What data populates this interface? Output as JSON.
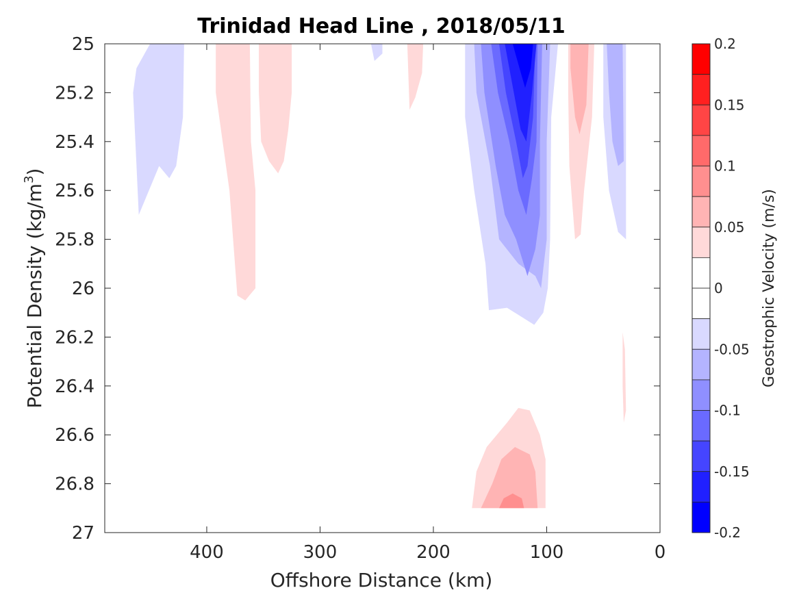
{
  "chart_data": {
    "type": "heatmap",
    "subtype": "filled-contour",
    "title": "Trinidad Head Line , 2018/05/11",
    "xlabel": "Offshore Distance (km)",
    "ylabel": "Potential Density (kg/m",
    "ylabel_sup": "3",
    "ylabel_close": ")",
    "xlim": [
      490,
      0
    ],
    "x_reversed": true,
    "ylim": [
      25,
      27
    ],
    "y_reversed": true,
    "xticks": [
      400,
      300,
      200,
      100,
      0
    ],
    "xtick_labels": [
      "400",
      "300",
      "200",
      "100",
      "0"
    ],
    "yticks": [
      25,
      25.2,
      25.4,
      25.6,
      25.8,
      26,
      26.2,
      26.4,
      26.6,
      26.8,
      27
    ],
    "ytick_labels": [
      "25",
      "25.2",
      "25.4",
      "25.6",
      "25.8",
      "26",
      "26.2",
      "26.4",
      "26.6",
      "26.8",
      "27"
    ],
    "colorbar": {
      "label": "Geostrophic Velocity (m/s)",
      "range": [
        -0.2,
        0.2
      ],
      "ticks": [
        0.2,
        0.15,
        0.1,
        0.05,
        0,
        -0.05,
        -0.1,
        -0.15,
        -0.2
      ],
      "tick_labels": [
        "0.2",
        "0.15",
        "0.1",
        "0.05",
        "0",
        "-0.05",
        "-0.1",
        "-0.15",
        "-0.2"
      ],
      "levels": [
        {
          "from": 0.175,
          "to": 0.2,
          "color": "#ff0000"
        },
        {
          "from": 0.15,
          "to": 0.175,
          "color": "#ff2020"
        },
        {
          "from": 0.125,
          "to": 0.15,
          "color": "#ff4545"
        },
        {
          "from": 0.1,
          "to": 0.125,
          "color": "#ff6a6a"
        },
        {
          "from": 0.075,
          "to": 0.1,
          "color": "#ff8f8f"
        },
        {
          "from": 0.05,
          "to": 0.075,
          "color": "#ffb4b4"
        },
        {
          "from": 0.025,
          "to": 0.05,
          "color": "#ffd9d9"
        },
        {
          "from": 0,
          "to": 0.025,
          "color": "#ffffff"
        },
        {
          "from": -0.025,
          "to": 0,
          "color": "#ffffff"
        },
        {
          "from": -0.05,
          "to": -0.025,
          "color": "#d9d9ff"
        },
        {
          "from": -0.075,
          "to": -0.05,
          "color": "#b4b4ff"
        },
        {
          "from": -0.1,
          "to": -0.075,
          "color": "#8f8fff"
        },
        {
          "from": -0.125,
          "to": -0.1,
          "color": "#6a6aff"
        },
        {
          "from": -0.15,
          "to": -0.125,
          "color": "#4545ff"
        },
        {
          "from": -0.175,
          "to": -0.15,
          "color": "#2020ff"
        },
        {
          "from": -0.2,
          "to": -0.175,
          "color": "#0000ff"
        }
      ]
    },
    "regions": [
      {
        "level": -0.05,
        "color": "#d9d9ff",
        "points": [
          [
            450,
            25
          ],
          [
            420,
            25
          ],
          [
            421,
            25.3
          ],
          [
            427,
            25.5
          ],
          [
            433,
            25.55
          ],
          [
            442,
            25.5
          ],
          [
            460,
            25.7
          ],
          [
            465,
            25.2
          ],
          [
            462,
            25.1
          ]
        ]
      },
      {
        "level": -0.05,
        "color": "#d9d9ff",
        "points": [
          [
            255,
            25
          ],
          [
            245,
            25
          ],
          [
            245,
            25.04
          ],
          [
            252,
            25.07
          ]
        ]
      },
      {
        "level": -0.05,
        "color": "#d9d9ff",
        "points": [
          [
            172,
            25
          ],
          [
            90,
            25
          ],
          [
            96,
            25.3
          ],
          [
            97,
            25.8
          ],
          [
            99,
            26.0
          ],
          [
            103,
            26.1
          ],
          [
            111,
            26.15
          ],
          [
            135,
            26.08
          ],
          [
            151,
            26.09
          ],
          [
            154,
            25.9
          ],
          [
            164,
            25.6
          ],
          [
            172,
            25.3
          ]
        ]
      },
      {
        "level": -0.05,
        "color": "#d9d9ff",
        "points": [
          [
            50,
            25
          ],
          [
            30,
            25
          ],
          [
            30,
            25.5
          ],
          [
            30,
            25.8
          ],
          [
            37,
            25.77
          ],
          [
            45,
            25.6
          ],
          [
            50,
            25.3
          ]
        ]
      },
      {
        "level": -0.075,
        "color": "#b4b4ff",
        "points": [
          [
            164,
            25
          ],
          [
            97,
            25
          ],
          [
            100,
            25.4
          ],
          [
            100,
            25.8
          ],
          [
            105,
            26.0
          ],
          [
            110,
            25.95
          ],
          [
            125,
            25.9
          ],
          [
            142,
            25.8
          ],
          [
            150,
            25.5
          ],
          [
            162,
            25.2
          ]
        ]
      },
      {
        "level": -0.075,
        "color": "#b4b4ff",
        "points": [
          [
            47,
            25
          ],
          [
            33,
            25
          ],
          [
            32,
            25.48
          ],
          [
            37,
            25.5
          ],
          [
            42,
            25.4
          ],
          [
            45,
            25.2
          ]
        ]
      },
      {
        "level": -0.1,
        "color": "#8f8fff",
        "points": [
          [
            158,
            25
          ],
          [
            104,
            25
          ],
          [
            106,
            25.4
          ],
          [
            106,
            25.7
          ],
          [
            110,
            25.84
          ],
          [
            117,
            25.95
          ],
          [
            127,
            25.8
          ],
          [
            137,
            25.7
          ],
          [
            145,
            25.5
          ],
          [
            155,
            25.2
          ]
        ]
      },
      {
        "level": -0.125,
        "color": "#6a6aff",
        "points": [
          [
            149,
            25
          ],
          [
            108,
            25
          ],
          [
            109,
            25.4
          ],
          [
            113,
            25.55
          ],
          [
            118,
            25.7
          ],
          [
            125,
            25.6
          ],
          [
            133,
            25.4
          ],
          [
            143,
            25.2
          ]
        ]
      },
      {
        "level": -0.15,
        "color": "#4545ff",
        "points": [
          [
            142,
            25
          ],
          [
            110,
            25
          ],
          [
            112,
            25.3
          ],
          [
            117,
            25.5
          ],
          [
            121,
            25.55
          ],
          [
            127,
            25.4
          ],
          [
            136,
            25.2
          ]
        ]
      },
      {
        "level": -0.175,
        "color": "#2020ff",
        "points": [
          [
            137,
            25
          ],
          [
            109,
            25
          ],
          [
            113,
            25.2
          ],
          [
            118,
            25.4
          ],
          [
            123,
            25.35
          ],
          [
            131,
            25.15
          ]
        ]
      },
      {
        "level": -0.2,
        "color": "#0000ff",
        "points": [
          [
            130,
            25
          ],
          [
            112,
            25
          ],
          [
            114,
            25.1
          ],
          [
            119,
            25.18
          ],
          [
            124,
            25.1
          ]
        ]
      },
      {
        "level": 0.05,
        "color": "#ffd9d9",
        "points": [
          [
            392,
            25
          ],
          [
            362,
            25
          ],
          [
            361,
            25.4
          ],
          [
            357,
            25.6
          ],
          [
            357,
            26.0
          ],
          [
            366,
            26.05
          ],
          [
            373,
            26.03
          ],
          [
            380,
            25.6
          ],
          [
            392,
            25.2
          ]
        ]
      },
      {
        "level": 0.05,
        "color": "#ffd9d9",
        "points": [
          [
            354,
            25
          ],
          [
            325,
            25
          ],
          [
            325,
            25.2
          ],
          [
            328,
            25.35
          ],
          [
            332,
            25.48
          ],
          [
            337,
            25.53
          ],
          [
            345,
            25.48
          ],
          [
            352,
            25.4
          ],
          [
            354,
            25.2
          ]
        ]
      },
      {
        "level": 0.05,
        "color": "#ffd9d9",
        "points": [
          [
            223,
            25
          ],
          [
            209,
            25
          ],
          [
            210,
            25.12
          ],
          [
            216,
            25.22
          ],
          [
            221,
            25.27
          ]
        ]
      },
      {
        "level": 0.05,
        "color": "#ffd9d9",
        "points": [
          [
            81,
            25
          ],
          [
            58,
            25
          ],
          [
            60,
            25.3
          ],
          [
            67,
            25.6
          ],
          [
            70,
            25.78
          ],
          [
            75,
            25.8
          ],
          [
            80,
            25.5
          ],
          [
            81,
            25.2
          ]
        ]
      },
      {
        "level": 0.05,
        "color": "#ffd9d9",
        "points": [
          [
            33,
            26.18
          ],
          [
            31,
            26.25
          ],
          [
            30,
            26.5
          ],
          [
            32,
            26.55
          ],
          [
            33,
            26.4
          ]
        ]
      },
      {
        "level": 0.075,
        "color": "#ffb4b4",
        "points": [
          [
            79,
            25
          ],
          [
            63,
            25
          ],
          [
            65,
            25.25
          ],
          [
            71,
            25.37
          ],
          [
            75,
            25.3
          ],
          [
            79,
            25.1
          ]
        ]
      },
      {
        "level": 0.05,
        "color": "#ffd9d9",
        "points": [
          [
            166,
            26.9
          ],
          [
            101,
            26.9
          ],
          [
            101,
            26.7
          ],
          [
            106,
            26.6
          ],
          [
            115,
            26.5
          ],
          [
            125,
            26.49
          ],
          [
            135,
            26.55
          ],
          [
            153,
            26.65
          ],
          [
            162,
            26.75
          ]
        ]
      },
      {
        "level": 0.075,
        "color": "#ffb4b4",
        "points": [
          [
            158,
            26.9
          ],
          [
            108,
            26.9
          ],
          [
            110,
            26.75
          ],
          [
            115,
            26.68
          ],
          [
            128,
            26.65
          ],
          [
            140,
            26.7
          ],
          [
            148,
            26.8
          ]
        ]
      },
      {
        "level": 0.1,
        "color": "#ff8f8f",
        "points": [
          [
            142,
            26.9
          ],
          [
            120,
            26.9
          ],
          [
            122,
            26.86
          ],
          [
            130,
            26.84
          ],
          [
            138,
            26.86
          ]
        ]
      }
    ]
  }
}
